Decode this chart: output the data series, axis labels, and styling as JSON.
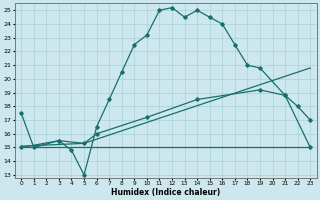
{
  "xlabel": "Humidex (Indice chaleur)",
  "bg_color": "#cce8ee",
  "line_color": "#1a6e6e",
  "grid_color": "#aed4da",
  "xlim": [
    -0.5,
    23.5
  ],
  "ylim": [
    12.8,
    25.5
  ],
  "yticks": [
    13,
    14,
    15,
    16,
    17,
    18,
    19,
    20,
    21,
    22,
    23,
    24,
    25
  ],
  "xticks": [
    0,
    1,
    2,
    3,
    4,
    5,
    6,
    7,
    8,
    9,
    10,
    11,
    12,
    13,
    14,
    15,
    16,
    17,
    18,
    19,
    20,
    21,
    22,
    23
  ],
  "line1_x": [
    0,
    1,
    3,
    4,
    5,
    6,
    7,
    8,
    9,
    10,
    11,
    12,
    13,
    14,
    15,
    16,
    17,
    18,
    19,
    21,
    22,
    23
  ],
  "line1_y": [
    17.5,
    15.0,
    15.5,
    14.8,
    13.0,
    16.5,
    18.5,
    20.5,
    22.5,
    23.2,
    25.0,
    25.2,
    24.5,
    25.0,
    24.5,
    24.0,
    22.5,
    21.0,
    20.8,
    18.8,
    18.0,
    17.0
  ],
  "line2_x": [
    0,
    3,
    5,
    6,
    10,
    14,
    19,
    21,
    23
  ],
  "line2_y": [
    15.0,
    15.5,
    15.3,
    16.0,
    17.2,
    18.5,
    19.2,
    18.8,
    15.0
  ],
  "line3_x": [
    0,
    5,
    23
  ],
  "line3_y": [
    15.1,
    15.3,
    20.8
  ],
  "line4_x": [
    0,
    14,
    21,
    23
  ],
  "line4_y": [
    15.0,
    15.0,
    15.0,
    15.0
  ]
}
